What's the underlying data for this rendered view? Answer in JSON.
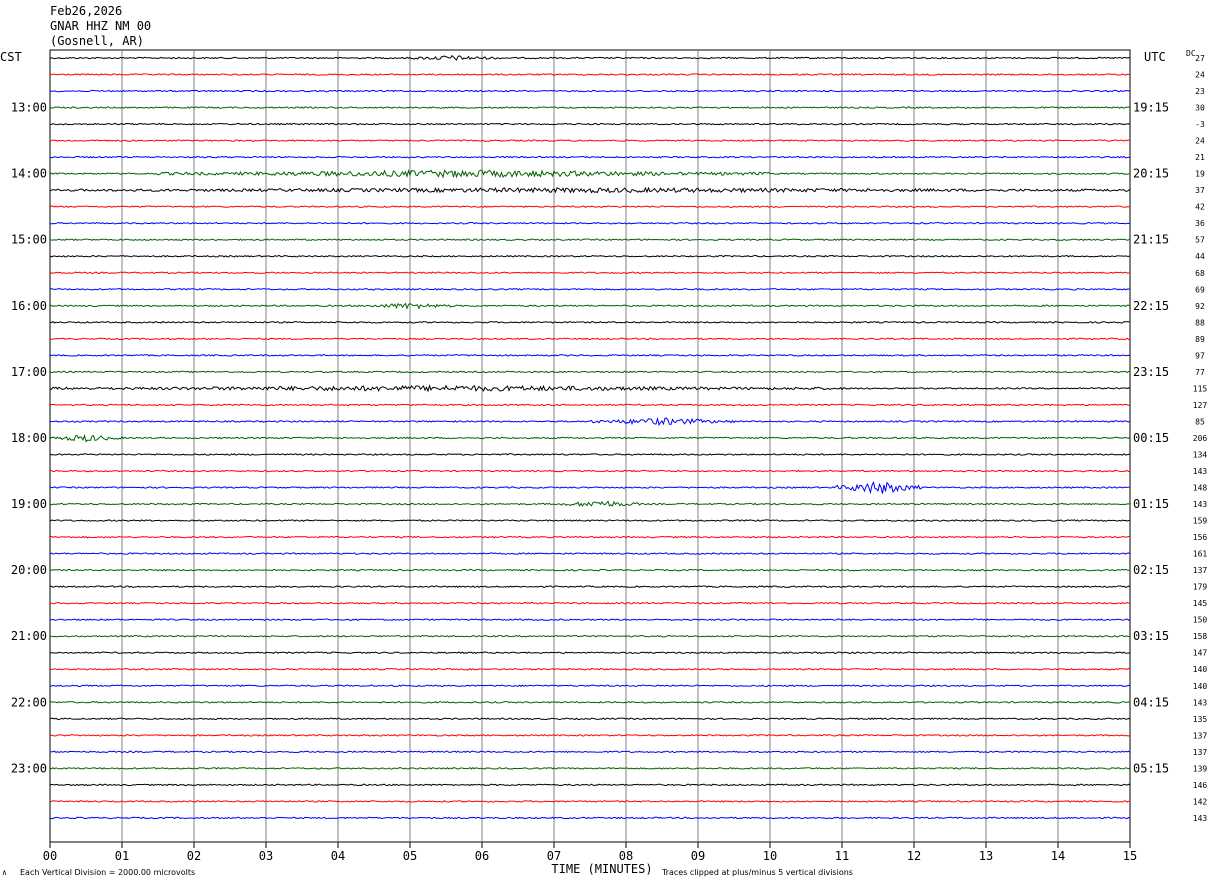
{
  "header": {
    "date": "Feb26,2026",
    "station": "GNAR HHZ NM 00",
    "location": "(Gosnell, AR)"
  },
  "labels": {
    "left_tz": "CST",
    "right_tz": "UTC",
    "dc": "DC",
    "xlabel": "TIME (MINUTES)",
    "scale_note": "Each Vertical Division = 2000.00 microvolts",
    "clip_note": "Traces clipped at plus/minus 5 vertical divisions",
    "corner_mark": "∧"
  },
  "colors": {
    "trace_cycle": [
      "#000000",
      "#ff0000",
      "#0000ff",
      "#006400"
    ],
    "grid": "#808080"
  },
  "chart_data": {
    "type": "line",
    "title": "GNAR HHZ NM 00",
    "xlabel": "TIME (MINUTES)",
    "x_ticks": [
      "00",
      "01",
      "02",
      "03",
      "04",
      "05",
      "06",
      "07",
      "08",
      "09",
      "10",
      "11",
      "12",
      "13",
      "14",
      "15"
    ],
    "xlim": [
      0,
      15
    ],
    "left_hour_labels": [
      "13:00",
      "14:00",
      "15:00",
      "16:00",
      "17:00",
      "18:00",
      "19:00",
      "20:00",
      "21:00",
      "22:00",
      "23:00"
    ],
    "right_hour_labels": [
      "19:15",
      "20:15",
      "21:15",
      "22:15",
      "23:15",
      "00:15",
      "01:15",
      "02:15",
      "03:15",
      "04:15",
      "05:15"
    ],
    "dc_offsets": [
      "27",
      "24",
      "23",
      "30",
      "-3",
      "24",
      "21",
      "19",
      "37",
      "42",
      "36",
      "57",
      "44",
      "68",
      "69",
      "92",
      "88",
      "89",
      "97",
      "77",
      "115",
      "127",
      "85",
      "206",
      "134",
      "143",
      "148",
      "143",
      "159",
      "156",
      "161",
      "137",
      "179",
      "145",
      "150",
      "158",
      "147",
      "140",
      "140",
      "143",
      "135",
      "137",
      "137",
      "139",
      "146",
      "142",
      "143"
    ],
    "trace_count": 47,
    "events": [
      {
        "trace": 0,
        "from_min": 5.0,
        "to_min": 6.2,
        "amplitude": 2.0
      },
      {
        "trace": 7,
        "from_min": 1.5,
        "to_min": 10.0,
        "amplitude": 3.0
      },
      {
        "trace": 8,
        "from_min": 0.0,
        "to_min": 15.0,
        "amplitude": 1.8
      },
      {
        "trace": 15,
        "from_min": 4.4,
        "to_min": 5.6,
        "amplitude": 2.5
      },
      {
        "trace": 20,
        "from_min": 0.0,
        "to_min": 11.0,
        "amplitude": 2.2
      },
      {
        "trace": 22,
        "from_min": 7.5,
        "to_min": 9.5,
        "amplitude": 3.0
      },
      {
        "trace": 23,
        "from_min": 0.0,
        "to_min": 1.0,
        "amplitude": 3.0
      },
      {
        "trace": 26,
        "from_min": 10.9,
        "to_min": 12.1,
        "amplitude": 6.0
      },
      {
        "trace": 27,
        "from_min": 7.1,
        "to_min": 8.2,
        "amplitude": 3.0
      }
    ]
  }
}
